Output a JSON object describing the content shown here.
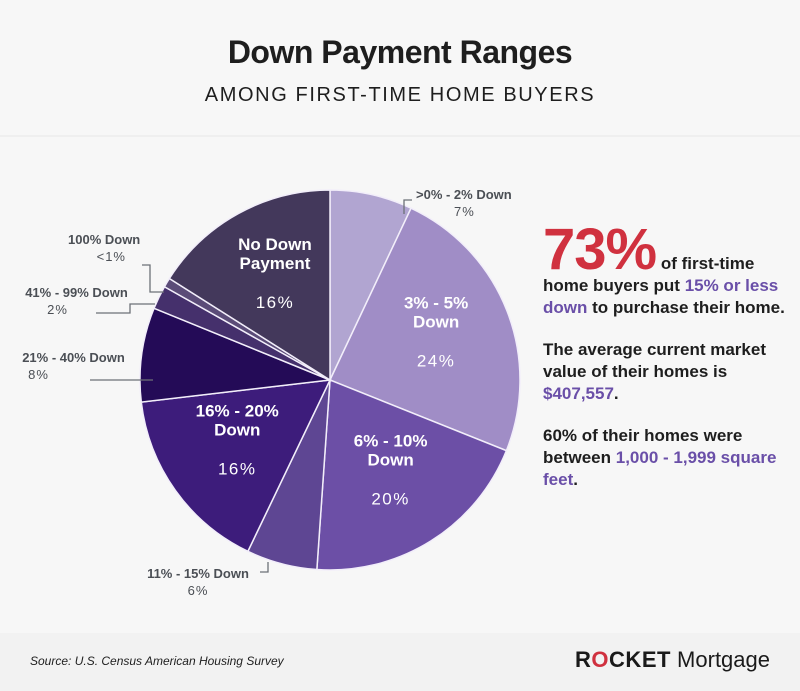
{
  "header": {
    "title": "Down Payment Ranges",
    "subtitle": "AMONG FIRST-TIME HOME BUYERS"
  },
  "callout": {
    "headline_pct": "73%",
    "line1_a": " of first-time home buyers put ",
    "line1_accent": "15% or less down",
    "line1_b": " to purchase their home.",
    "line2_a": "The average current market value of their homes is ",
    "line2_accent": "$407,557",
    "line2_b": ".",
    "line3_a": "60% of their homes were between ",
    "line3_accent": "1,000 - 1,999 square feet",
    "line3_b": "."
  },
  "footer": {
    "source": "Source: U.S. Census American Housing Survey",
    "logo_bold_prefix": "R",
    "logo_o": "O",
    "logo_bold_suffix": "CKET",
    "logo_light": " Mortgage"
  },
  "colors": {
    "accent_red": "#d0313f",
    "accent_purple": "#6a4fa8"
  },
  "chart_data": {
    "type": "pie",
    "title": "Down Payment Ranges",
    "subtitle": "Among First-Time Home Buyers",
    "start_angle_deg": 0,
    "direction": "clockwise",
    "slices": [
      {
        "label": ">0% - 2% Down",
        "value": 7,
        "display": "7%",
        "color": "#b1a5d1",
        "label_position": "outside"
      },
      {
        "label": "3% - 5% Down",
        "value": 24,
        "display": "24%",
        "color": "#a08dc6",
        "label_position": "inside",
        "inside_lines": [
          "3% - 5%",
          "Down"
        ]
      },
      {
        "label": "6% - 10% Down",
        "value": 20,
        "display": "20%",
        "color": "#6c4fa6",
        "label_position": "inside",
        "inside_lines": [
          "6% - 10%",
          "Down"
        ]
      },
      {
        "label": "11% - 15% Down",
        "value": 6,
        "display": "6%",
        "color": "#5e4693",
        "label_position": "outside"
      },
      {
        "label": "16% - 20% Down",
        "value": 16,
        "display": "16%",
        "color": "#3d1c7b",
        "label_position": "inside",
        "inside_lines": [
          "16% - 20%",
          "Down"
        ]
      },
      {
        "label": "21% - 40% Down",
        "value": 8,
        "display": "8%",
        "color": "#240b57",
        "label_position": "outside"
      },
      {
        "label": "41% - 99% Down",
        "value": 2,
        "display": "2%",
        "color": "#45306c",
        "label_position": "outside"
      },
      {
        "label": "100% Down",
        "value": 0.8,
        "display": "<1%",
        "color": "#5b4c78",
        "label_position": "outside"
      },
      {
        "label": "No Down Payment",
        "value": 16,
        "display": "16%",
        "color": "#43385b",
        "label_position": "inside",
        "inside_lines": [
          "No Down",
          "Payment"
        ]
      }
    ]
  }
}
